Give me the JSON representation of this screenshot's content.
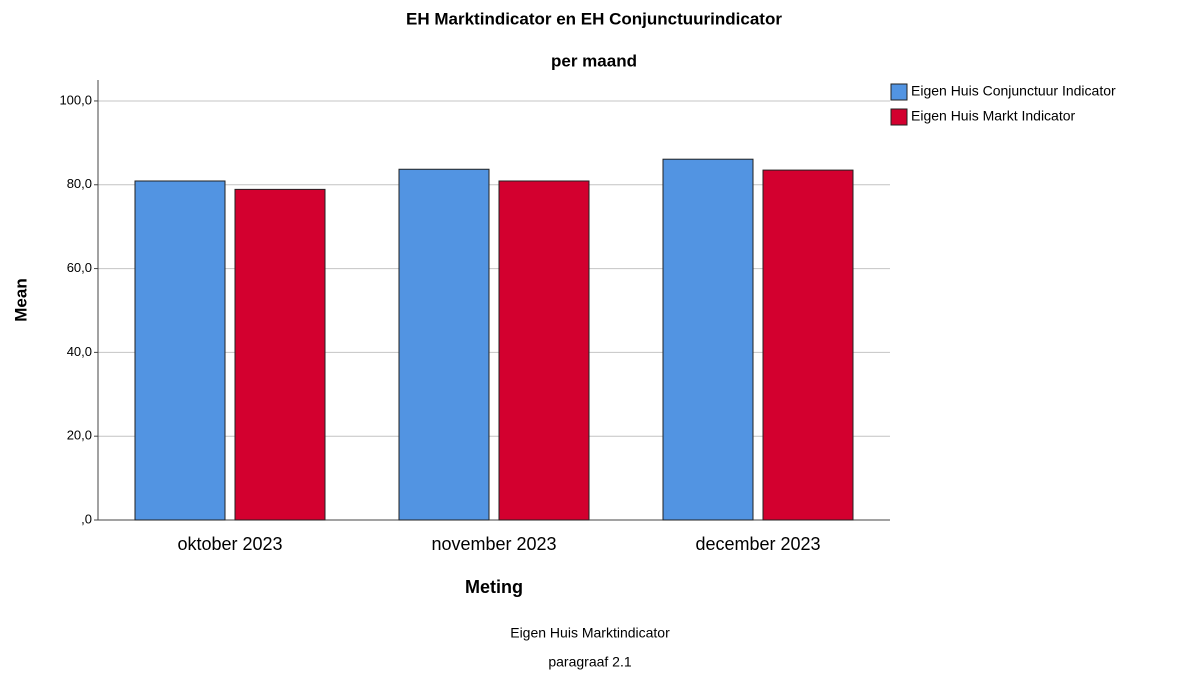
{
  "chart_data": {
    "type": "bar",
    "title": "EH Marktindicator en EH Conjunctuurindicator",
    "subtitle": "per maand",
    "y_label": "Mean",
    "x_label": "Meting",
    "footnotes": [
      "Eigen Huis Marktindicator",
      "paragraaf 2.1"
    ],
    "categories": [
      "oktober 2023",
      "november 2023",
      "december 2023"
    ],
    "series": [
      {
        "name": "Eigen Huis Conjunctuur Indicator",
        "color": "#5294e2",
        "values": [
          80.9,
          83.7,
          86.1
        ]
      },
      {
        "name": "Eigen Huis Markt Indicator",
        "color": "#d3002f",
        "values": [
          78.9,
          80.9,
          83.5
        ]
      }
    ],
    "ylim": [
      0,
      105
    ],
    "yticks": [
      {
        "value": 0,
        "label": ",0"
      },
      {
        "value": 20,
        "label": "20,0"
      },
      {
        "value": 40,
        "label": "40,0"
      },
      {
        "value": 60,
        "label": "60,0"
      },
      {
        "value": 80,
        "label": "80,0"
      },
      {
        "value": 100,
        "label": "100,0"
      }
    ],
    "grid": true,
    "legend": "top-right"
  }
}
